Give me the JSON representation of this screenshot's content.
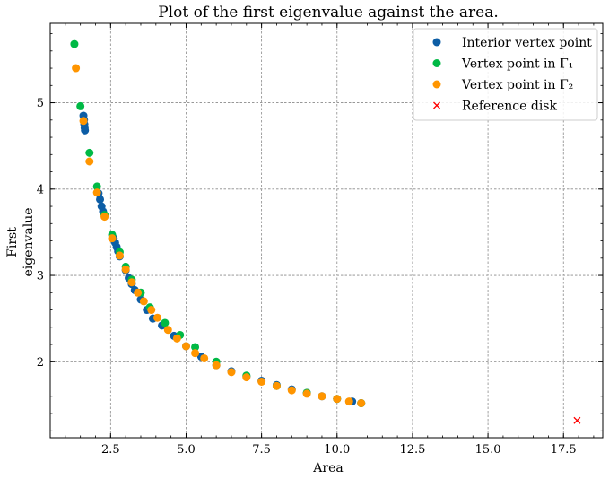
{
  "chart_data": {
    "type": "scatter",
    "title": "Plot of the first eigenvalue against the area.",
    "xlabel": "Area",
    "ylabel_lines": [
      "First",
      "eigenvalue"
    ],
    "xlim": [
      0.5,
      18.8
    ],
    "ylim": [
      1.12,
      5.92
    ],
    "x_ticks": [
      2.5,
      5.0,
      7.5,
      10.0,
      12.5,
      15.0,
      17.5
    ],
    "x_tick_labels": [
      "2.5",
      "5.0",
      "7.5",
      "10.0",
      "12.5",
      "15.0",
      "17.5"
    ],
    "y_ticks": [
      2,
      3,
      4,
      5
    ],
    "y_tick_labels": [
      "2",
      "3",
      "4",
      "5"
    ],
    "grid": true,
    "legend_position": "top-right",
    "series": [
      {
        "name": "Interior vertex point",
        "marker": "circle",
        "color": "#0C5DA5",
        "x": [
          1.6,
          1.62,
          1.63,
          1.64,
          1.65,
          2.1,
          2.15,
          2.2,
          2.25,
          2.6,
          2.65,
          2.7,
          2.75,
          2.8,
          3.0,
          3.1,
          3.2,
          3.3,
          3.5,
          3.7,
          3.9,
          4.2,
          4.6,
          5.0,
          5.5,
          6.0,
          6.5,
          7.0,
          7.5,
          8.0,
          8.5,
          9.0,
          9.5,
          10.0,
          10.5,
          10.8
        ],
        "y": [
          4.85,
          4.8,
          4.75,
          4.71,
          4.68,
          3.95,
          3.88,
          3.8,
          3.74,
          3.43,
          3.38,
          3.33,
          3.28,
          3.22,
          3.06,
          2.97,
          2.9,
          2.83,
          2.72,
          2.6,
          2.5,
          2.42,
          2.3,
          2.18,
          2.06,
          1.96,
          1.89,
          1.83,
          1.78,
          1.73,
          1.68,
          1.64,
          1.6,
          1.57,
          1.54,
          1.52
        ]
      },
      {
        "name": "Vertex point in Γ₁",
        "marker": "circle",
        "color": "#00B945",
        "x": [
          1.3,
          1.5,
          1.8,
          2.05,
          2.3,
          2.55,
          2.8,
          3.0,
          3.2,
          3.5,
          3.8,
          4.3,
          4.8,
          5.3,
          6.0,
          7.0,
          8.0,
          9.0,
          10.0,
          10.8
        ],
        "y": [
          5.68,
          4.96,
          4.42,
          4.03,
          3.7,
          3.47,
          3.27,
          3.1,
          2.95,
          2.8,
          2.63,
          2.45,
          2.31,
          2.17,
          2.0,
          1.84,
          1.72,
          1.64,
          1.57,
          1.52
        ]
      },
      {
        "name": "Vertex point in Γ₂",
        "marker": "circle",
        "color": "#FF9500",
        "x": [
          1.35,
          1.6,
          1.8,
          2.05,
          2.3,
          2.55,
          2.8,
          3.0,
          3.2,
          3.4,
          3.6,
          3.85,
          4.05,
          4.4,
          4.7,
          5.0,
          5.3,
          5.6,
          6.0,
          6.5,
          7.0,
          7.5,
          8.0,
          8.5,
          9.0,
          9.5,
          10.0,
          10.4,
          10.8
        ],
        "y": [
          5.4,
          4.79,
          4.32,
          3.96,
          3.68,
          3.43,
          3.23,
          3.07,
          2.92,
          2.8,
          2.7,
          2.6,
          2.51,
          2.37,
          2.27,
          2.18,
          2.1,
          2.04,
          1.96,
          1.88,
          1.82,
          1.77,
          1.72,
          1.67,
          1.63,
          1.6,
          1.57,
          1.54,
          1.52
        ]
      },
      {
        "name": "Reference disk",
        "marker": "x",
        "color": "#FF0000",
        "x": [
          17.95
        ],
        "y": [
          1.32
        ]
      }
    ]
  }
}
